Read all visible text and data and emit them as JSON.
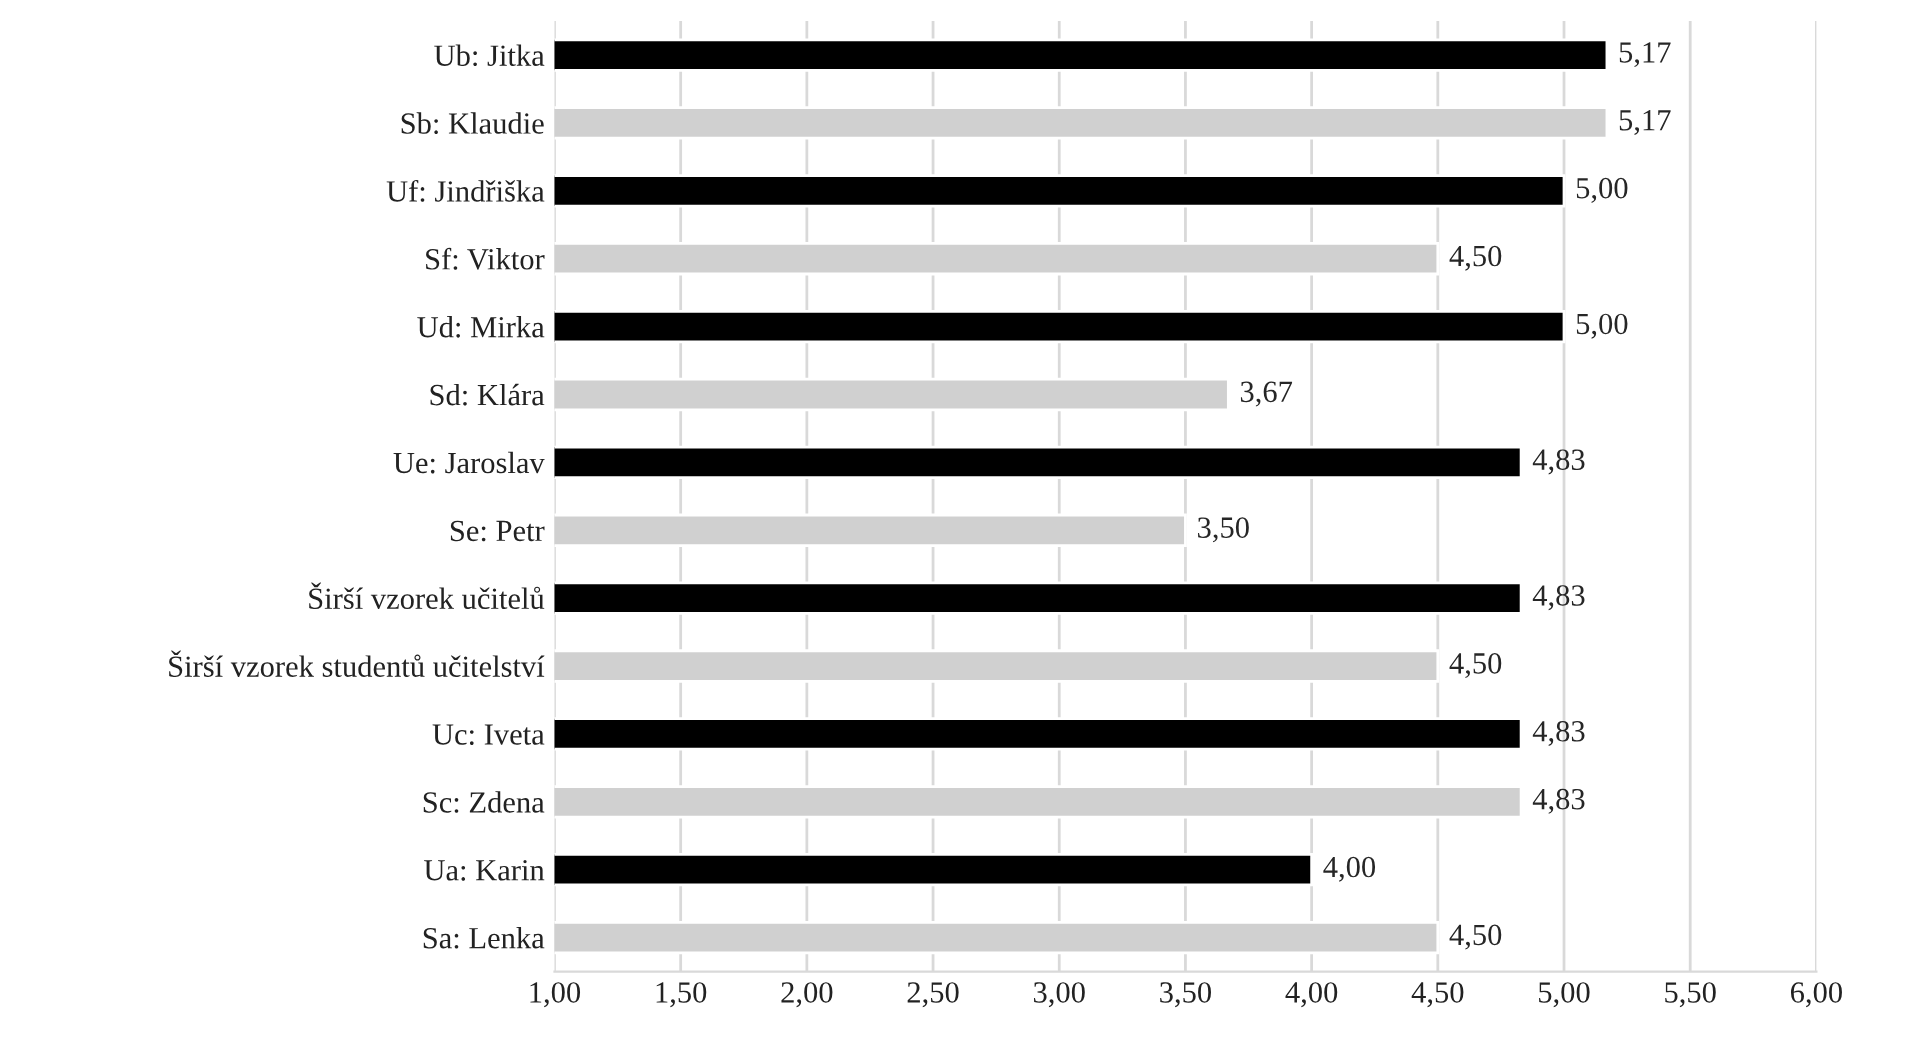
{
  "chart_data": {
    "type": "bar",
    "orientation": "horizontal",
    "categories": [
      "Ub: Jitka",
      "Sb: Klaudie",
      "Uf: Jindřiška",
      "Sf: Viktor",
      "Ud: Mirka",
      "Sd: Klára",
      "Ue: Jaroslav",
      "Se: Petr",
      "Širší vzorek učitelů",
      "Širší vzorek studentů učitelství",
      "Uc: Iveta",
      "Sc: Zdena",
      "Ua: Karin",
      "Sa: Lenka"
    ],
    "values": [
      5.17,
      5.17,
      5.0,
      4.5,
      5.0,
      3.67,
      4.83,
      3.5,
      4.83,
      4.5,
      4.83,
      4.83,
      4.0,
      4.5
    ],
    "colors": [
      "#000000",
      "#d0d0d0",
      "#000000",
      "#d0d0d0",
      "#000000",
      "#d0d0d0",
      "#000000",
      "#d0d0d0",
      "#000000",
      "#d0d0d0",
      "#000000",
      "#d0d0d0",
      "#000000",
      "#d0d0d0"
    ],
    "value_labels": [
      "5,17",
      "5,17",
      "5,00",
      "4,50",
      "5,00",
      "3,67",
      "4,83",
      "3,50",
      "4,83",
      "4,50",
      "4,83",
      "4,83",
      "4,00",
      "4,50"
    ],
    "xlim": [
      1,
      6
    ],
    "xticks": [
      {
        "value": 1,
        "label": "1,00"
      },
      {
        "value": 1.5,
        "label": "1,50"
      },
      {
        "value": 2,
        "label": "2,00"
      },
      {
        "value": 2.5,
        "label": "2,50"
      },
      {
        "value": 3,
        "label": "3,00"
      },
      {
        "value": 3.5,
        "label": "3,50"
      },
      {
        "value": 4,
        "label": "4,00"
      },
      {
        "value": 4.5,
        "label": "4,50"
      },
      {
        "value": 5,
        "label": "5,00"
      },
      {
        "value": 5.5,
        "label": "5,50"
      },
      {
        "value": 6,
        "label": "6,00"
      }
    ],
    "grid": "x",
    "legend": false
  }
}
